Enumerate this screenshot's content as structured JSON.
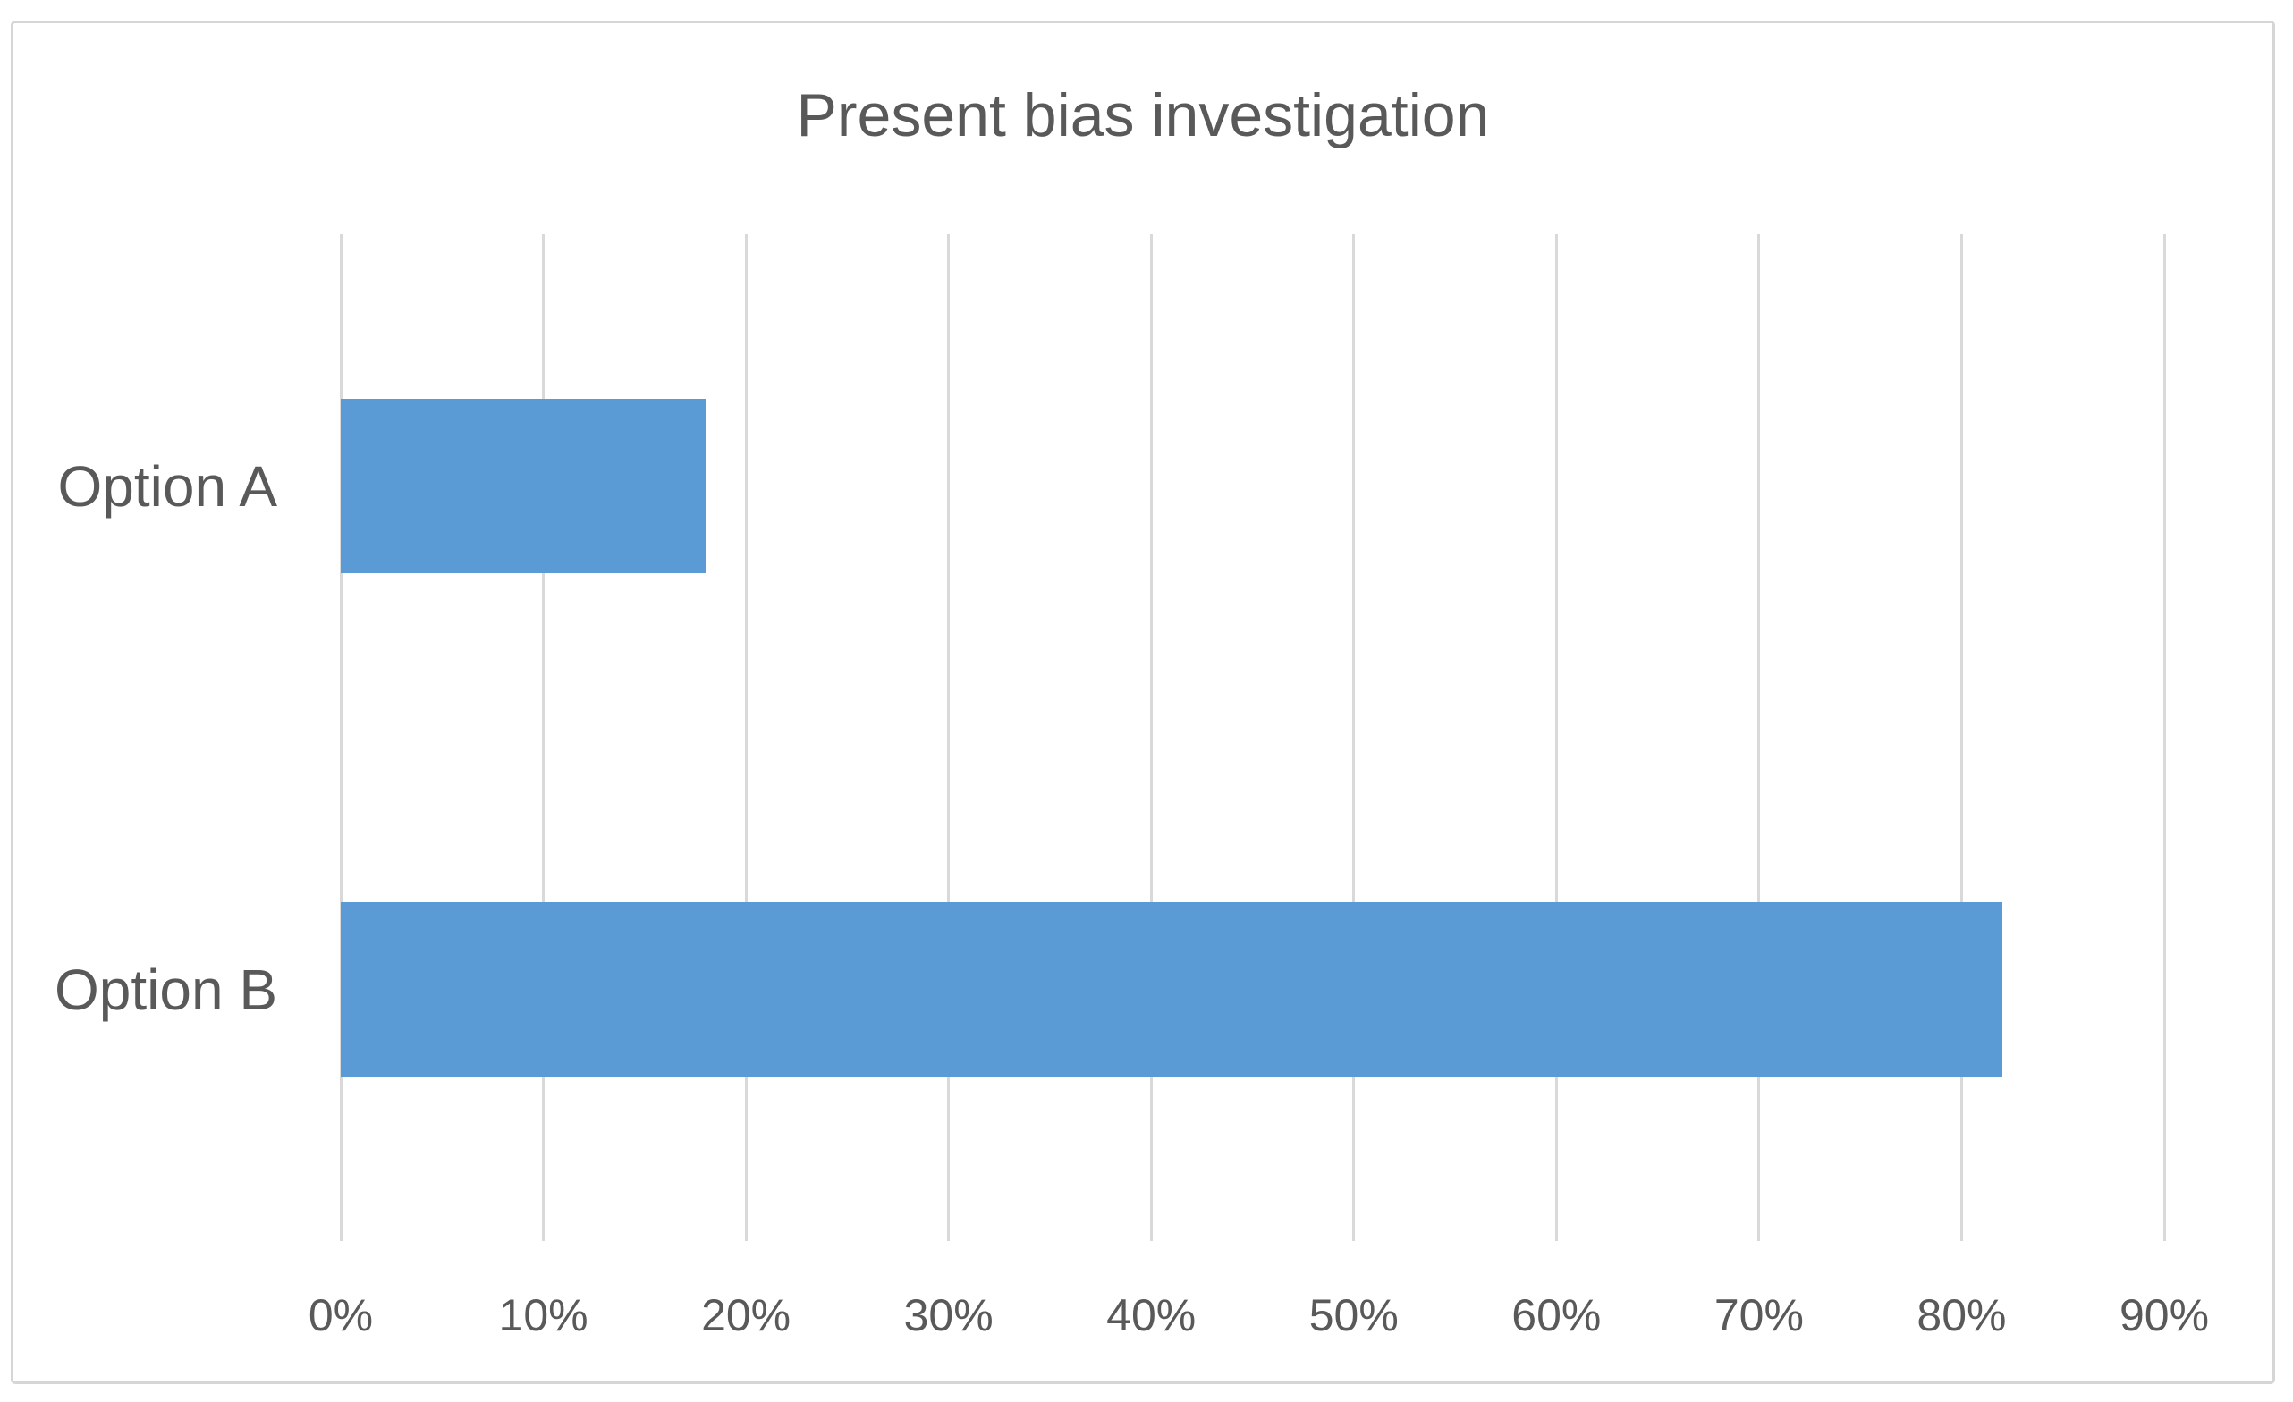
{
  "chart_data": {
    "type": "bar",
    "orientation": "horizontal",
    "title": "Present bias investigation",
    "categories": [
      "Option A",
      "Option B"
    ],
    "values": [
      18,
      82
    ],
    "value_unit": "%",
    "x_ticks": [
      "0%",
      "10%",
      "20%",
      "30%",
      "40%",
      "50%",
      "60%",
      "70%",
      "80%",
      "90%"
    ],
    "xlim": [
      0,
      90
    ],
    "xlabel": "",
    "ylabel": "",
    "legend": "none",
    "grid": "vertical",
    "colors": {
      "bar": "#5B9BD5",
      "gridline": "#D9D9D9",
      "text": "#595959",
      "frame_border": "#D6D6D6",
      "background": "#FFFFFF"
    }
  }
}
